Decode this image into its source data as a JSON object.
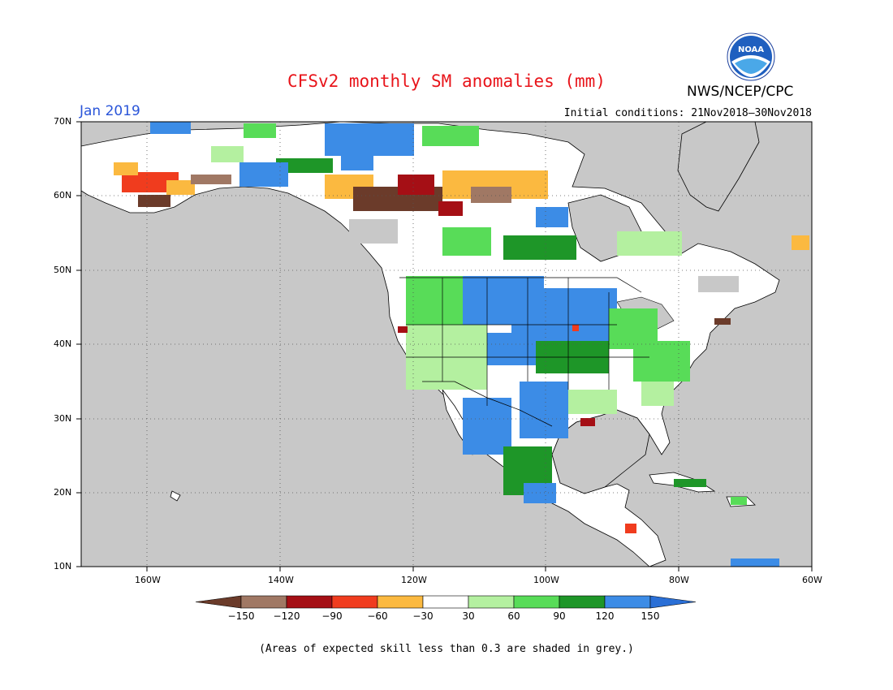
{
  "header": {
    "title": "CFSv2 monthly SM anomalies (mm)",
    "month": "Jan 2019",
    "initial_conditions": "Initial conditions: 21Nov2018–30Nov2018",
    "agency": "NWS/NCEP/CPC",
    "logo_text": "NOAA"
  },
  "axes": {
    "lat_labels": [
      "70N",
      "60N",
      "50N",
      "40N",
      "30N",
      "20N",
      "10N"
    ],
    "lon_labels": [
      "160W",
      "140W",
      "120W",
      "100W",
      "80W",
      "60W"
    ]
  },
  "colorbar": {
    "labels": [
      "−150",
      "−120",
      "−90",
      "−60",
      "−30",
      "30",
      "60",
      "90",
      "120",
      "150"
    ],
    "colors": [
      "#6b3b2a",
      "#a07864",
      "#a50f15",
      "#f03c1e",
      "#fbb940",
      "#ffffff",
      "#b4f0a0",
      "#58dc58",
      "#1e9628",
      "#3c8ce6",
      "#2a6fd6"
    ]
  },
  "footnote": "(Areas of expected skill less than 0.3 are shaded in grey.)",
  "colors": {
    "ocean": "#c8c8c8",
    "land": "#ffffff",
    "grey_skill": "#c8c8c8"
  }
}
